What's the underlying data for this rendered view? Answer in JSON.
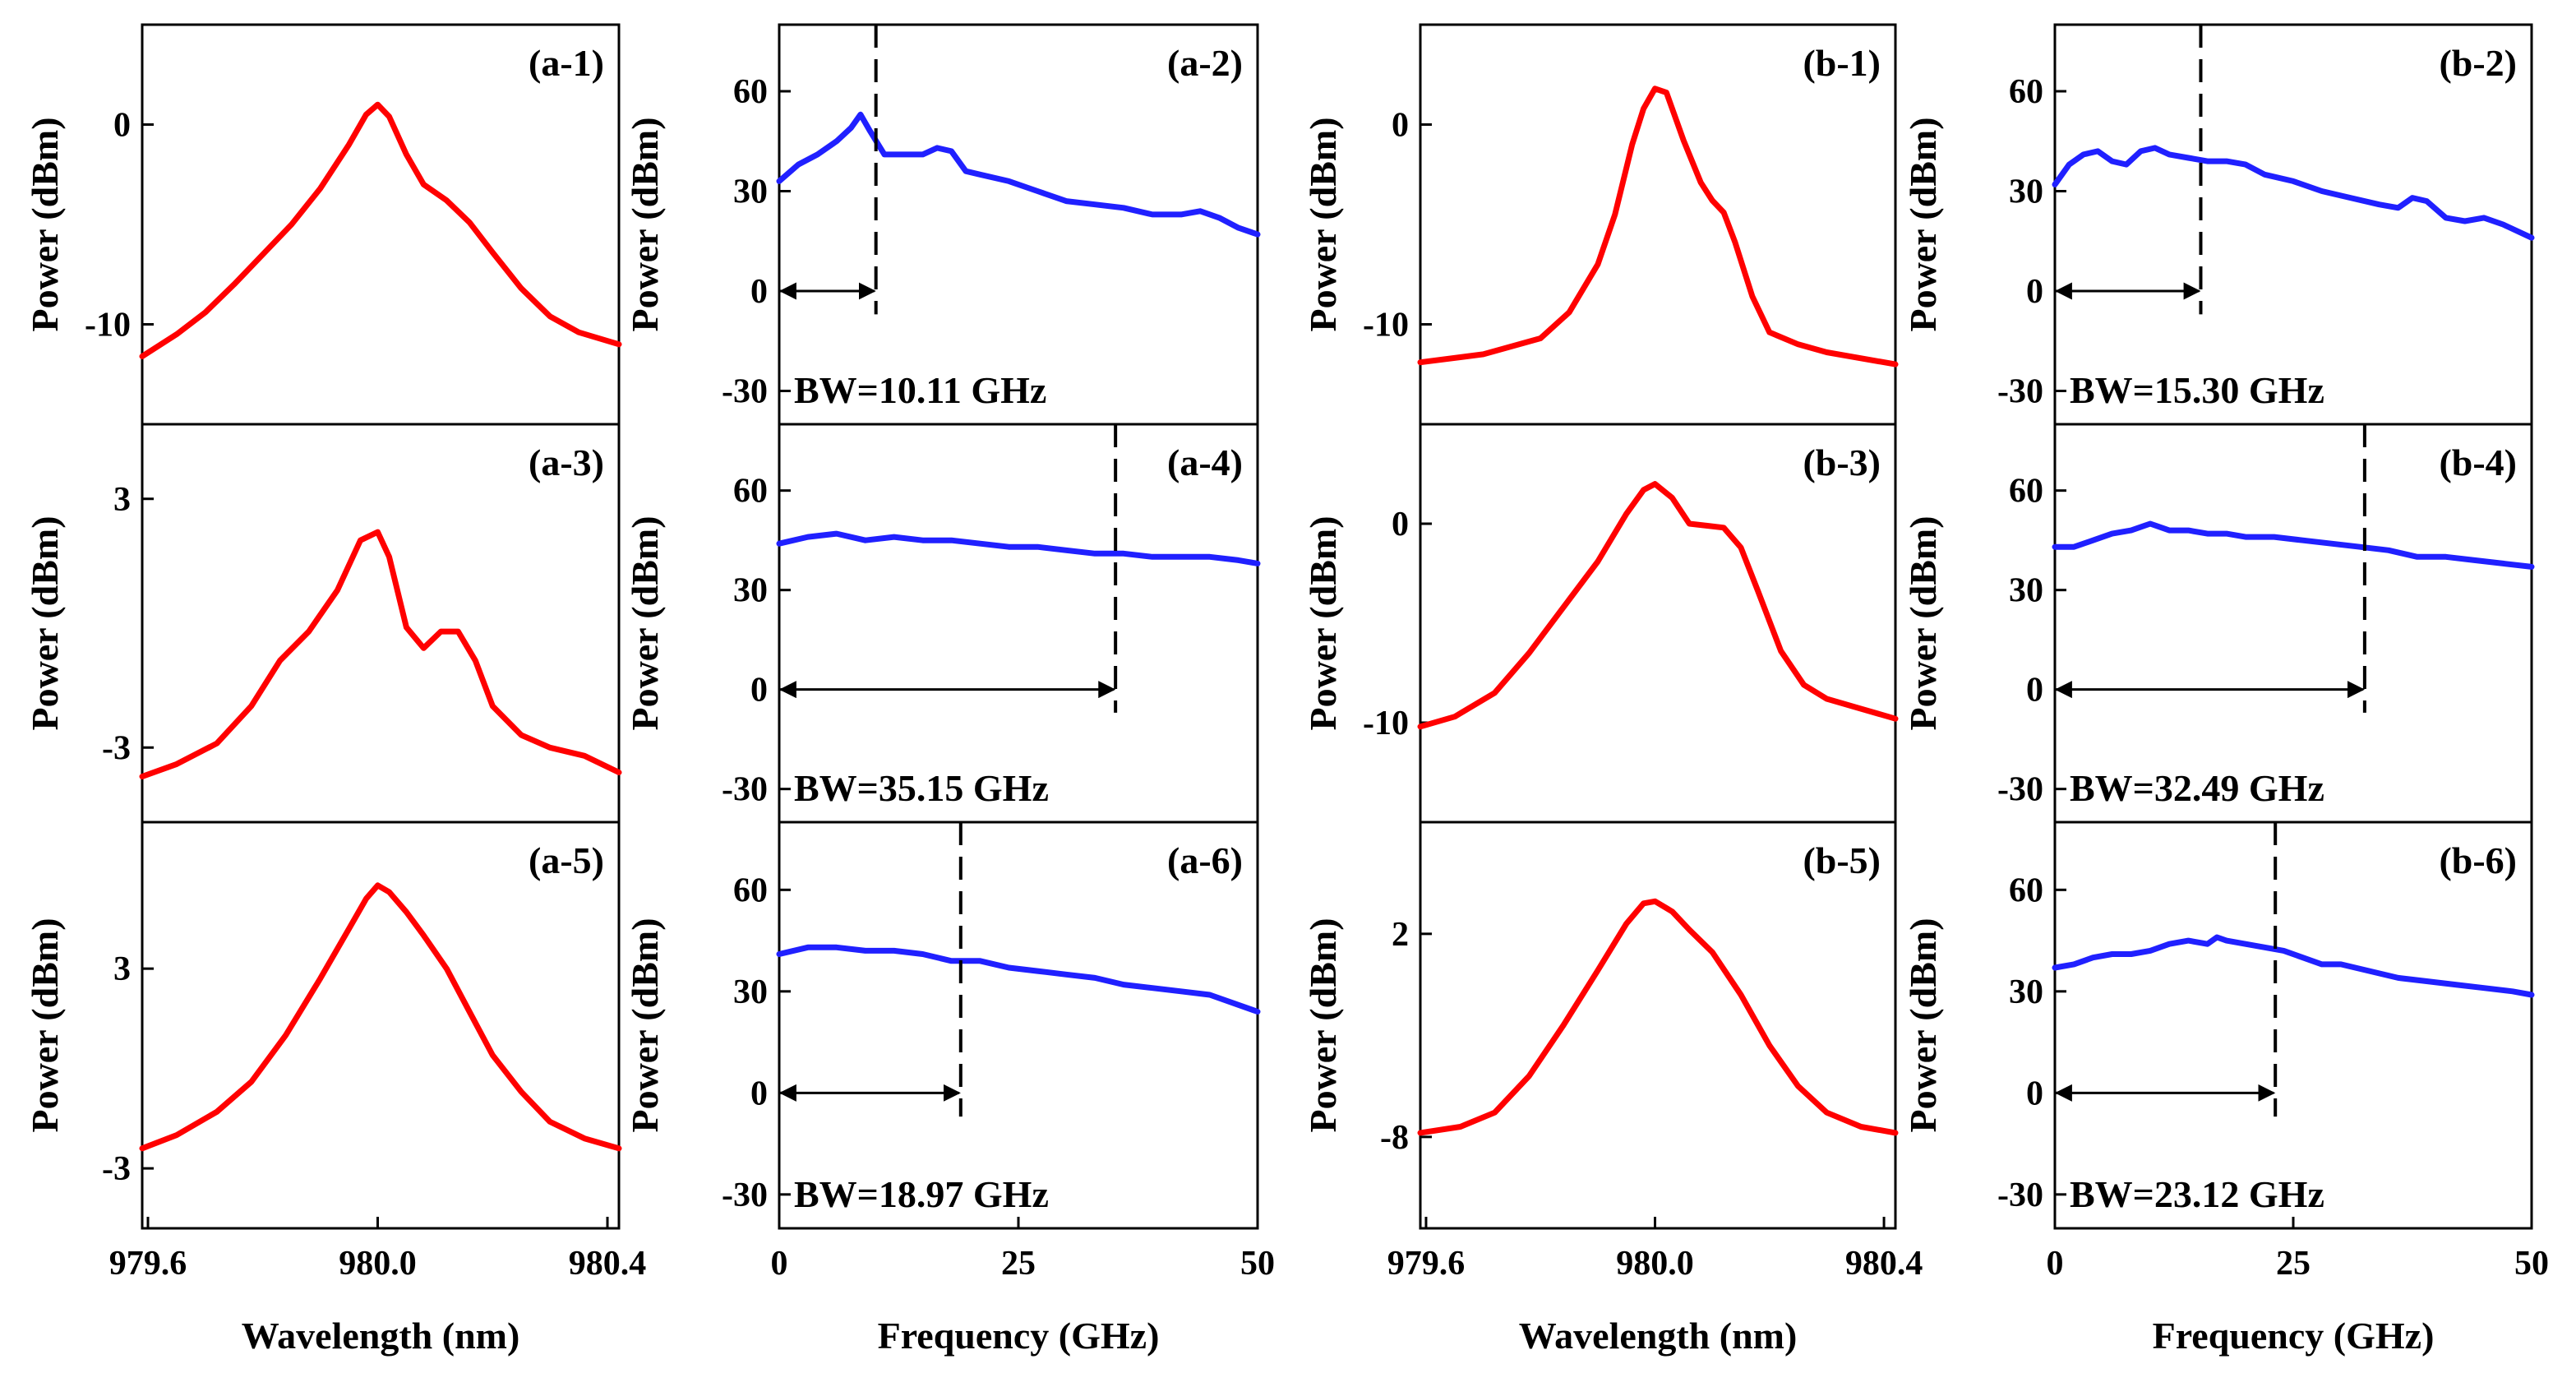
{
  "figure": {
    "description_free": true
  },
  "colors": {
    "spectrum": "#ff0000",
    "rf": "#2020ff",
    "axis": "#000000",
    "marker": "#000000"
  },
  "chart_data": [
    {
      "id": "a-1",
      "type": "line",
      "label": "(a-1)",
      "kind": "spectrum",
      "col": 0,
      "row": 0,
      "ylabel": "Power (dBm)",
      "xlabel": "",
      "xlim": [
        979.59,
        980.42
      ],
      "ylim": [
        -15,
        5
      ],
      "yticks": [
        {
          "v": 0,
          "t": "0"
        },
        {
          "v": -10,
          "t": "-10"
        }
      ],
      "xticks": [],
      "x": [
        979.59,
        979.65,
        979.7,
        979.75,
        979.8,
        979.85,
        979.9,
        979.95,
        979.98,
        980.0,
        980.02,
        980.05,
        980.08,
        980.12,
        980.16,
        980.2,
        980.25,
        980.3,
        980.35,
        980.42
      ],
      "y": [
        -11.6,
        -10.5,
        -9.4,
        -8.0,
        -6.5,
        -5.0,
        -3.2,
        -1.0,
        0.5,
        1.0,
        0.4,
        -1.5,
        -3.0,
        -3.8,
        -4.9,
        -6.4,
        -8.2,
        -9.6,
        -10.4,
        -11.0
      ]
    },
    {
      "id": "a-2",
      "type": "line",
      "label": "(a-2)",
      "kind": "rf",
      "col": 1,
      "row": 0,
      "ylabel": "Power (dBm)",
      "xlabel": "",
      "xlim": [
        0,
        50
      ],
      "ylim": [
        -40,
        80
      ],
      "yticks": [
        {
          "v": 60,
          "t": "60"
        },
        {
          "v": 30,
          "t": "30"
        },
        {
          "v": 0,
          "t": "0"
        },
        {
          "v": -30,
          "t": "-30"
        }
      ],
      "xticks": [],
      "bw_value": 10.11,
      "bw_text": "BW=10.11 GHz",
      "x": [
        0,
        2,
        4,
        6,
        7.5,
        8.5,
        9.5,
        11,
        13,
        15,
        16.5,
        18,
        19.5,
        21,
        24,
        27,
        30,
        33,
        36,
        39,
        42,
        44,
        46,
        48,
        50
      ],
      "y": [
        33,
        38,
        41,
        45,
        49,
        53,
        48,
        41,
        41,
        41,
        43,
        42,
        36,
        35,
        33,
        30,
        27,
        26,
        25,
        23,
        23,
        24,
        22,
        19,
        17
      ]
    },
    {
      "id": "b-1",
      "type": "line",
      "label": "(b-1)",
      "kind": "spectrum",
      "col": 2,
      "row": 0,
      "ylabel": "Power (dBm)",
      "xlabel": "",
      "xlim": [
        979.59,
        980.42
      ],
      "ylim": [
        -15,
        5
      ],
      "yticks": [
        {
          "v": 0,
          "t": "0"
        },
        {
          "v": -10,
          "t": "-10"
        }
      ],
      "xticks": [],
      "x": [
        979.59,
        979.7,
        979.8,
        979.85,
        979.9,
        979.93,
        979.96,
        979.98,
        980.0,
        980.02,
        980.05,
        980.08,
        980.1,
        980.12,
        980.14,
        980.17,
        980.2,
        980.25,
        980.3,
        980.42
      ],
      "y": [
        -11.9,
        -11.5,
        -10.7,
        -9.4,
        -7.0,
        -4.5,
        -1.0,
        0.8,
        1.8,
        1.6,
        -0.8,
        -2.9,
        -3.8,
        -4.4,
        -5.9,
        -8.6,
        -10.4,
        -11.0,
        -11.4,
        -12.0
      ]
    },
    {
      "id": "b-2",
      "type": "line",
      "label": "(b-2)",
      "kind": "rf",
      "col": 3,
      "row": 0,
      "ylabel": "Power (dBm)",
      "xlabel": "",
      "xlim": [
        0,
        50
      ],
      "ylim": [
        -40,
        80
      ],
      "yticks": [
        {
          "v": 60,
          "t": "60"
        },
        {
          "v": 30,
          "t": "30"
        },
        {
          "v": 0,
          "t": "0"
        },
        {
          "v": -30,
          "t": "-30"
        }
      ],
      "xticks": [],
      "bw_value": 15.3,
      "bw_text": "BW=15.30 GHz",
      "x": [
        0,
        1.5,
        3,
        4.5,
        6,
        7.5,
        9,
        10.5,
        12,
        14,
        16,
        18,
        20,
        22,
        25,
        28,
        31,
        34,
        36,
        37.5,
        39,
        41,
        43,
        45,
        47,
        50
      ],
      "y": [
        32,
        38,
        41,
        42,
        39,
        38,
        42,
        43,
        41,
        40,
        39,
        39,
        38,
        35,
        33,
        30,
        28,
        26,
        25,
        28,
        27,
        22,
        21,
        22,
        20,
        16
      ]
    },
    {
      "id": "a-3",
      "type": "line",
      "label": "(a-3)",
      "kind": "spectrum",
      "col": 0,
      "row": 1,
      "ylabel": "Power (dBm)",
      "xlabel": "",
      "xlim": [
        979.59,
        980.42
      ],
      "ylim": [
        -4.8,
        4.8
      ],
      "yticks": [
        {
          "v": 3,
          "t": "3"
        },
        {
          "v": -3,
          "t": "-3"
        }
      ],
      "xticks": [],
      "x": [
        979.59,
        979.65,
        979.72,
        979.78,
        979.83,
        979.88,
        979.93,
        979.97,
        980.0,
        980.02,
        980.05,
        980.08,
        980.11,
        980.14,
        980.17,
        980.2,
        980.25,
        980.3,
        980.36,
        980.42
      ],
      "y": [
        -3.7,
        -3.4,
        -2.9,
        -2.0,
        -0.9,
        -0.2,
        0.8,
        2.0,
        2.2,
        1.6,
        -0.1,
        -0.6,
        -0.2,
        -0.2,
        -0.9,
        -2.0,
        -2.7,
        -3.0,
        -3.2,
        -3.6
      ]
    },
    {
      "id": "a-4",
      "type": "line",
      "label": "(a-4)",
      "kind": "rf",
      "col": 1,
      "row": 1,
      "ylabel": "Power (dBm)",
      "xlabel": "",
      "xlim": [
        0,
        50
      ],
      "ylim": [
        -40,
        80
      ],
      "yticks": [
        {
          "v": 60,
          "t": "60"
        },
        {
          "v": 30,
          "t": "30"
        },
        {
          "v": 0,
          "t": "0"
        },
        {
          "v": -30,
          "t": "-30"
        }
      ],
      "xticks": [],
      "bw_value": 35.15,
      "bw_text": "BW=35.15 GHz",
      "x": [
        0,
        3,
        6,
        9,
        12,
        15,
        18,
        21,
        24,
        27,
        30,
        33,
        36,
        39,
        42,
        45,
        48,
        50
      ],
      "y": [
        44,
        46,
        47,
        45,
        46,
        45,
        45,
        44,
        43,
        43,
        42,
        41,
        41,
        40,
        40,
        40,
        39,
        38
      ]
    },
    {
      "id": "b-3",
      "type": "line",
      "label": "(b-3)",
      "kind": "spectrum",
      "col": 2,
      "row": 1,
      "ylabel": "Power (dBm)",
      "xlabel": "",
      "xlim": [
        979.59,
        980.42
      ],
      "ylim": [
        -15,
        5
      ],
      "yticks": [
        {
          "v": 0,
          "t": "0"
        },
        {
          "v": -10,
          "t": "-10"
        }
      ],
      "xticks": [],
      "x": [
        979.59,
        979.65,
        979.72,
        979.78,
        979.84,
        979.9,
        979.95,
        979.98,
        980.0,
        980.03,
        980.06,
        980.09,
        980.12,
        980.15,
        980.18,
        980.22,
        980.26,
        980.3,
        980.36,
        980.42
      ],
      "y": [
        -10.2,
        -9.7,
        -8.5,
        -6.5,
        -4.2,
        -1.9,
        0.5,
        1.7,
        2.0,
        1.3,
        0.0,
        -0.1,
        -0.2,
        -1.2,
        -3.4,
        -6.4,
        -8.1,
        -8.8,
        -9.3,
        -9.8
      ]
    },
    {
      "id": "b-4",
      "type": "line",
      "label": "(b-4)",
      "kind": "rf",
      "col": 3,
      "row": 1,
      "ylabel": "Power (dBm)",
      "xlabel": "",
      "xlim": [
        0,
        50
      ],
      "ylim": [
        -40,
        80
      ],
      "yticks": [
        {
          "v": 60,
          "t": "60"
        },
        {
          "v": 30,
          "t": "30"
        },
        {
          "v": 0,
          "t": "0"
        },
        {
          "v": -30,
          "t": "-30"
        }
      ],
      "xticks": [],
      "bw_value": 32.49,
      "bw_text": "BW=32.49 GHz",
      "x": [
        0,
        2,
        4,
        6,
        8,
        10,
        12,
        14,
        16,
        18,
        20,
        23,
        26,
        29,
        32,
        35,
        38,
        41,
        44,
        47,
        50
      ],
      "y": [
        43,
        43,
        45,
        47,
        48,
        50,
        48,
        48,
        47,
        47,
        46,
        46,
        45,
        44,
        43,
        42,
        40,
        40,
        39,
        38,
        37
      ]
    },
    {
      "id": "a-5",
      "type": "line",
      "label": "(a-5)",
      "kind": "spectrum",
      "col": 0,
      "row": 2,
      "ylabel": "Power (dBm)",
      "xlabel": "Wavelength (nm)",
      "xlim": [
        979.59,
        980.42
      ],
      "ylim": [
        -4.8,
        7.4
      ],
      "yticks": [
        {
          "v": 3,
          "t": "3"
        },
        {
          "v": -3,
          "t": "-3"
        }
      ],
      "xticks": [
        {
          "v": 979.6,
          "t": "979.6"
        },
        {
          "v": 980.0,
          "t": "980.0"
        },
        {
          "v": 980.4,
          "t": "980.4"
        }
      ],
      "x": [
        979.59,
        979.65,
        979.72,
        979.78,
        979.84,
        979.9,
        979.95,
        979.98,
        980.0,
        980.02,
        980.05,
        980.08,
        980.12,
        980.16,
        980.2,
        980.25,
        980.3,
        980.36,
        980.42
      ],
      "y": [
        -2.4,
        -2.0,
        -1.3,
        -0.4,
        1.0,
        2.7,
        4.2,
        5.1,
        5.5,
        5.3,
        4.7,
        4.0,
        3.0,
        1.7,
        0.4,
        -0.7,
        -1.6,
        -2.1,
        -2.4
      ]
    },
    {
      "id": "a-6",
      "type": "line",
      "label": "(a-6)",
      "kind": "rf",
      "col": 1,
      "row": 2,
      "ylabel": "Power (dBm)",
      "xlabel": "Frequency (GHz)",
      "xlim": [
        0,
        50
      ],
      "ylim": [
        -40,
        80
      ],
      "yticks": [
        {
          "v": 60,
          "t": "60"
        },
        {
          "v": 30,
          "t": "30"
        },
        {
          "v": 0,
          "t": "0"
        },
        {
          "v": -30,
          "t": "-30"
        }
      ],
      "xticks": [
        {
          "v": 0,
          "t": "0"
        },
        {
          "v": 25,
          "t": "25"
        },
        {
          "v": 50,
          "t": "50"
        }
      ],
      "bw_value": 18.97,
      "bw_text": "BW=18.97 GHz",
      "x": [
        0,
        3,
        6,
        9,
        12,
        15,
        18,
        21,
        24,
        27,
        30,
        33,
        36,
        39,
        42,
        45,
        48,
        50
      ],
      "y": [
        41,
        43,
        43,
        42,
        42,
        41,
        39,
        39,
        37,
        36,
        35,
        34,
        32,
        31,
        30,
        29,
        26,
        24
      ]
    },
    {
      "id": "b-5",
      "type": "line",
      "label": "(b-5)",
      "kind": "spectrum",
      "col": 2,
      "row": 2,
      "ylabel": "Power (dBm)",
      "xlabel": "Wavelength (nm)",
      "xlim": [
        979.59,
        980.42
      ],
      "ylim": [
        -12.5,
        7.5
      ],
      "yticks": [
        {
          "v": 2,
          "t": "2"
        },
        {
          "v": -8,
          "t": "-8"
        }
      ],
      "xticks": [
        {
          "v": 979.6,
          "t": "979.6"
        },
        {
          "v": 980.0,
          "t": "980.0"
        },
        {
          "v": 980.4,
          "t": "980.4"
        }
      ],
      "x": [
        979.59,
        979.66,
        979.72,
        979.78,
        979.84,
        979.9,
        979.95,
        979.98,
        980.0,
        980.03,
        980.06,
        980.1,
        980.15,
        980.2,
        980.25,
        980.3,
        980.36,
        980.42
      ],
      "y": [
        -7.8,
        -7.5,
        -6.8,
        -5.0,
        -2.5,
        0.2,
        2.5,
        3.5,
        3.6,
        3.1,
        2.2,
        1.1,
        -1.0,
        -3.5,
        -5.5,
        -6.8,
        -7.5,
        -7.8
      ]
    },
    {
      "id": "b-6",
      "type": "line",
      "label": "(b-6)",
      "kind": "rf",
      "col": 3,
      "row": 2,
      "ylabel": "Power (dBm)",
      "xlabel": "Frequency (GHz)",
      "xlim": [
        0,
        50
      ],
      "ylim": [
        -40,
        80
      ],
      "yticks": [
        {
          "v": 60,
          "t": "60"
        },
        {
          "v": 30,
          "t": "30"
        },
        {
          "v": 0,
          "t": "0"
        },
        {
          "v": -30,
          "t": "-30"
        }
      ],
      "xticks": [
        {
          "v": 0,
          "t": "0"
        },
        {
          "v": 25,
          "t": "25"
        },
        {
          "v": 50,
          "t": "50"
        }
      ],
      "bw_value": 23.12,
      "bw_text": "BW=23.12 GHz",
      "x": [
        0,
        2,
        4,
        6,
        8,
        10,
        12,
        14,
        16,
        17,
        18,
        20,
        22,
        24,
        26,
        28,
        30,
        33,
        36,
        39,
        42,
        45,
        48,
        50
      ],
      "y": [
        37,
        38,
        40,
        41,
        41,
        42,
        44,
        45,
        44,
        46,
        45,
        44,
        43,
        42,
        40,
        38,
        38,
        36,
        34,
        33,
        32,
        31,
        30,
        29
      ]
    }
  ]
}
